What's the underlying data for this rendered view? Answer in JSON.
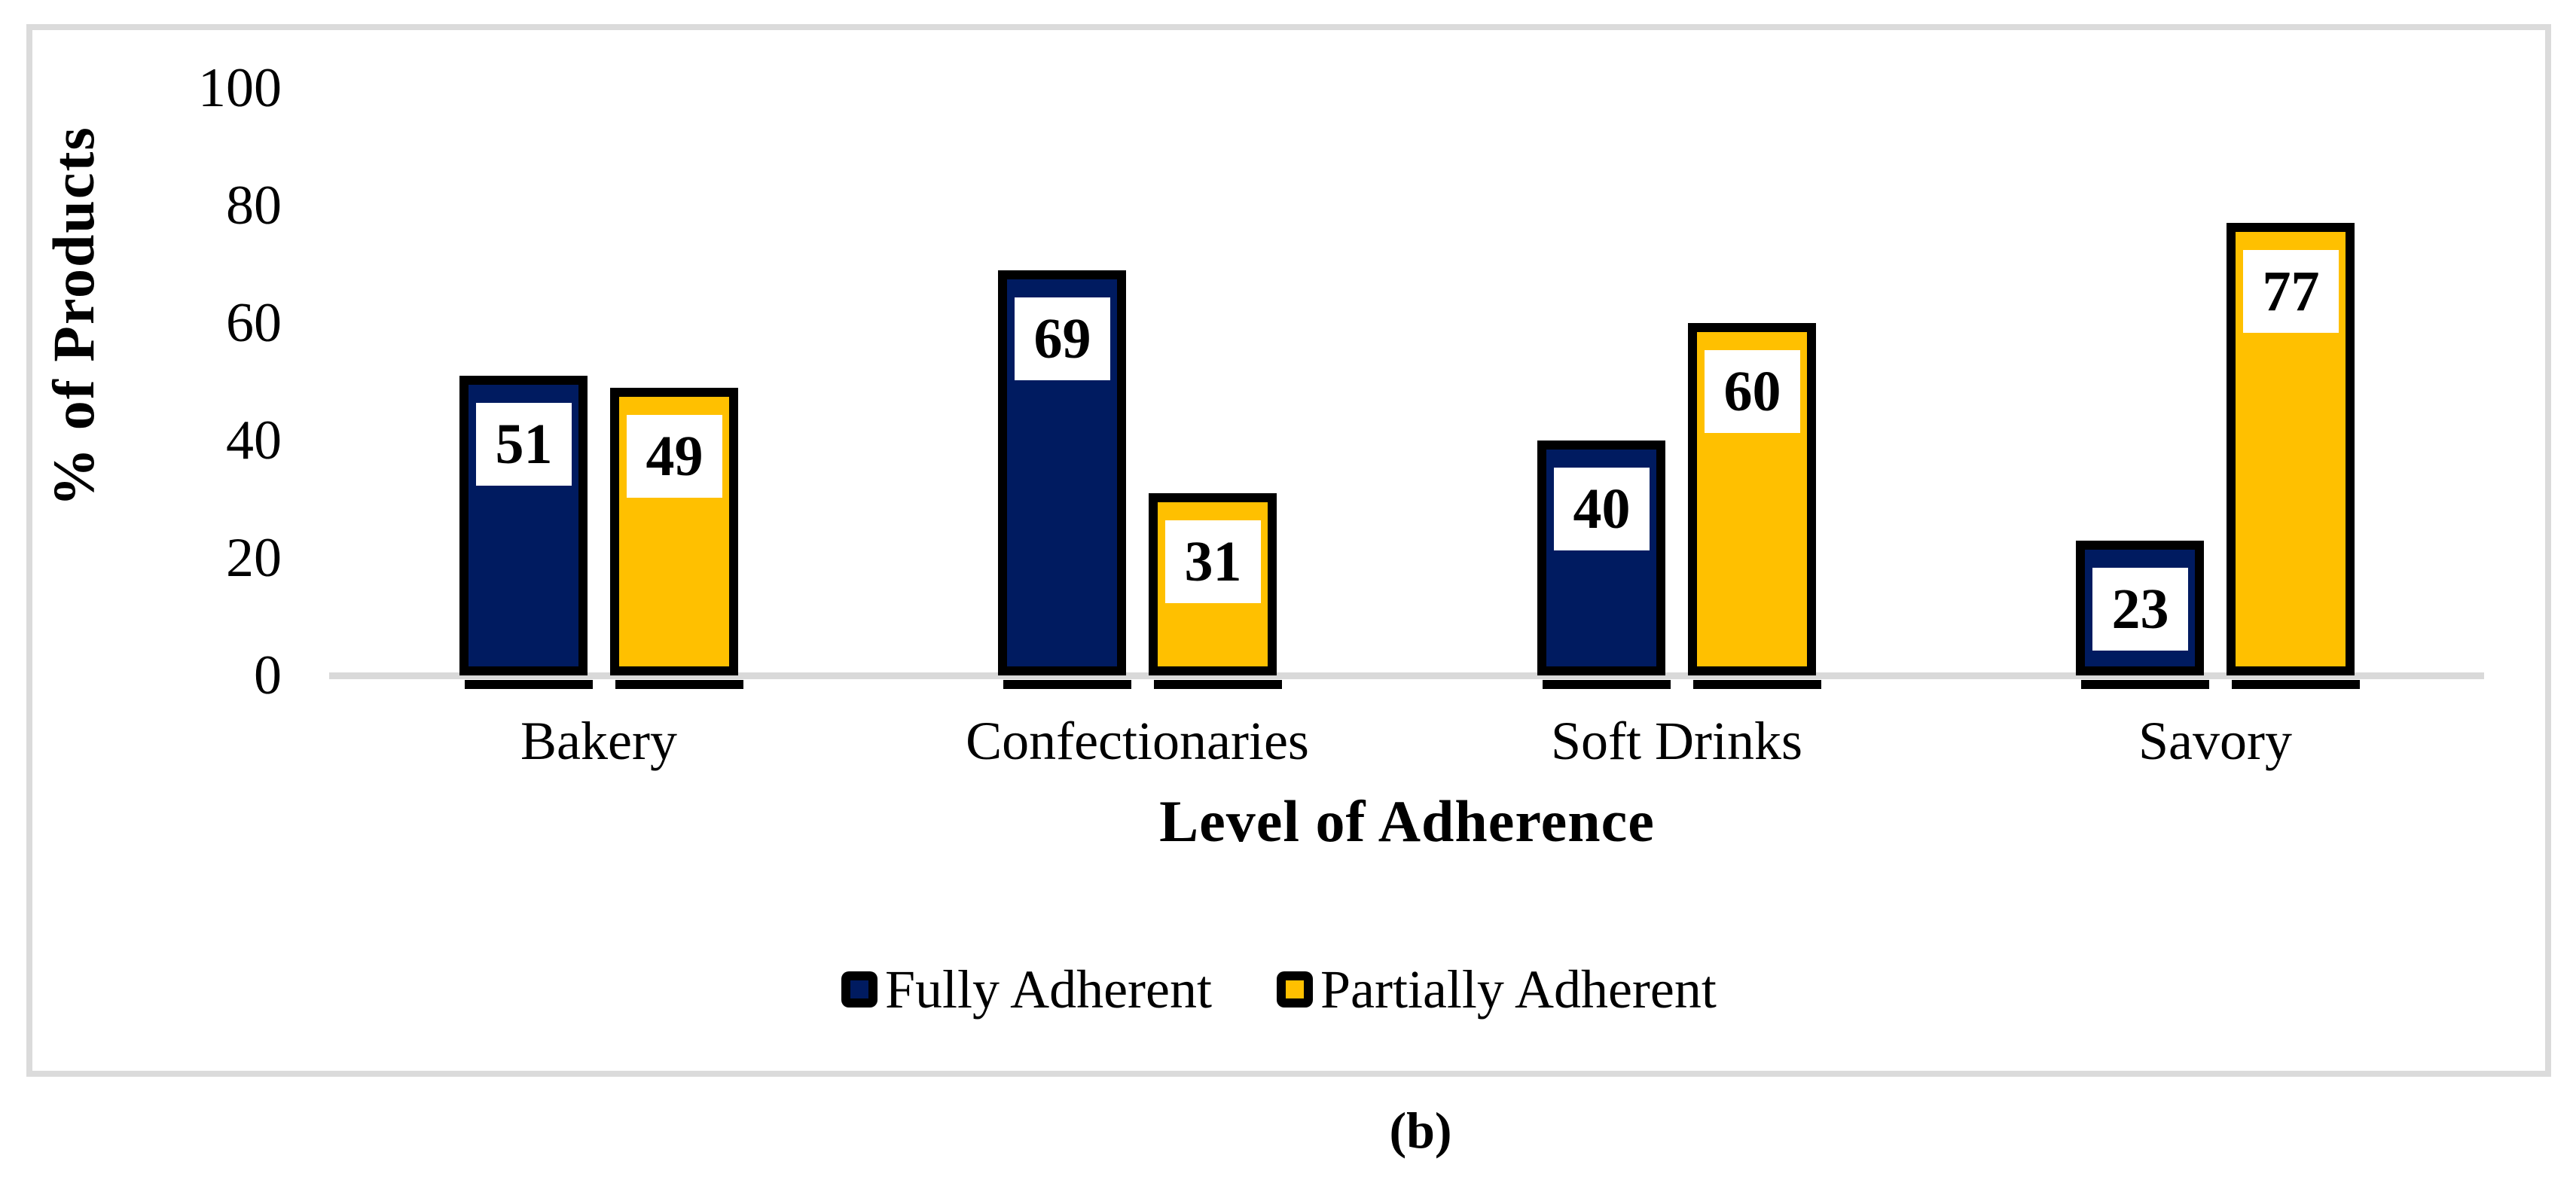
{
  "figure": {
    "caption": "(b)"
  },
  "chart_data": {
    "type": "bar",
    "title": "",
    "xlabel": "Level of Adherence",
    "ylabel": "% of Products",
    "categories": [
      "Bakery",
      "Confectionaries",
      "Soft Drinks",
      "Savory"
    ],
    "series": [
      {
        "name": "Fully Adherent",
        "color": "#001B60",
        "values": [
          51,
          69,
          40,
          23
        ]
      },
      {
        "name": "Partially Adherent",
        "color": "#FFC000",
        "values": [
          49,
          31,
          60,
          77
        ]
      }
    ],
    "yticks": [
      0,
      20,
      40,
      60,
      80,
      100
    ],
    "ylim": [
      0,
      100
    ],
    "grid": false,
    "legend_position": "bottom",
    "style": {
      "bar_border_color": "#000000",
      "bar_shadow_color": "#000000",
      "data_label_bg": "#FFFFFF",
      "data_label_text": "#000000",
      "axis_line_color": "#D9D9D9",
      "frame_border_color": "#DBDBDB",
      "text_color": "#000000",
      "background": "#FFFFFF"
    }
  }
}
